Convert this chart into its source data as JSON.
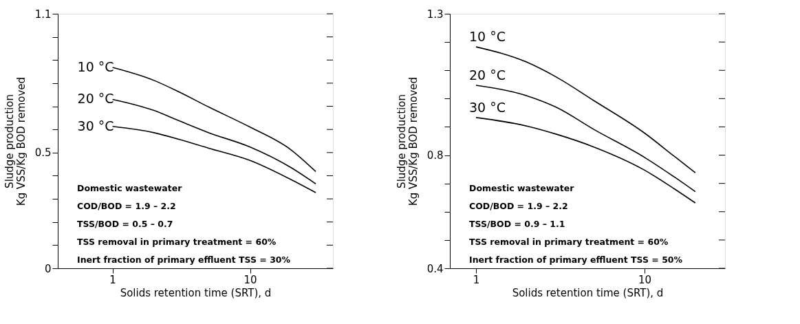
{
  "chart_data": [
    {
      "type": "line",
      "xlabel": "Solids retention time (SRT), d",
      "ylabel": "Sludge production\nKg VSS/Kg BOD removed",
      "log": "x",
      "grid": false,
      "legend": false,
      "marker": "none",
      "line_style": "solid",
      "xlim": [
        0.4,
        40
      ],
      "xticks": [
        1,
        10
      ],
      "ylim": [
        0,
        1.1
      ],
      "yticks": [
        0,
        {
          "value": 0.1,
          "label": null
        },
        {
          "value": 0.2,
          "label": null
        },
        {
          "value": 0.3,
          "label": null
        },
        {
          "value": 0.4,
          "label": null
        },
        0.5,
        {
          "value": 0.6,
          "label": null
        },
        {
          "value": 0.7,
          "label": null
        },
        {
          "value": 0.8,
          "label": null
        },
        {
          "value": 0.9,
          "label": null
        },
        {
          "value": 1.0,
          "label": null
        },
        1.1
      ],
      "x": [
        1,
        2,
        3,
        5,
        10,
        19.6,
        30
      ],
      "series": [
        {
          "name": "10 °C",
          "color": "#000000",
          "values": [
            0.868,
            0.812,
            0.764,
            0.697,
            0.61,
            0.514,
            0.418
          ]
        },
        {
          "name": "20 °C",
          "color": "#000000",
          "values": [
            0.73,
            0.682,
            0.639,
            0.586,
            0.524,
            0.437,
            0.365
          ]
        },
        {
          "name": "30 °C",
          "color": "#000000",
          "values": [
            0.613,
            0.586,
            0.558,
            0.519,
            0.466,
            0.385,
            0.327
          ]
        }
      ],
      "annotations": [
        "Domestic wastewater",
        "COD/BOD = 1.9 – 2.2",
        "TSS/BOD = 0.5 – 0.7",
        "TSS removal in primary treatment = 60%",
        "Inert fraction of primary effluent TSS = 30%"
      ]
    },
    {
      "type": "line",
      "xlabel": "Solids retention time (SRT), d",
      "ylabel": "Sludge production\nKg VSS/Kg BOD removed",
      "log": "x",
      "grid": false,
      "legend": false,
      "marker": "none",
      "line_style": "solid",
      "xlim": [
        0.7,
        30
      ],
      "xticks": [
        1,
        10
      ],
      "ylim": [
        0.4,
        1.3
      ],
      "yticks": [
        0.4,
        {
          "value": 0.5,
          "label": null
        },
        {
          "value": 0.6,
          "label": null
        },
        {
          "value": 0.7,
          "label": null
        },
        0.8,
        {
          "value": 0.9,
          "label": null
        },
        {
          "value": 1.0,
          "label": null
        },
        {
          "value": 1.1,
          "label": null
        },
        {
          "value": 1.2,
          "label": null
        },
        1.3
      ],
      "x": [
        1,
        2,
        3,
        5,
        10,
        15,
        20
      ],
      "series": [
        {
          "name": "10 °C",
          "color": "#000000",
          "values": [
            1.183,
            1.129,
            1.076,
            0.993,
            0.878,
            0.796,
            0.738
          ]
        },
        {
          "name": "20 °C",
          "color": "#000000",
          "values": [
            1.047,
            1.01,
            0.969,
            0.891,
            0.792,
            0.723,
            0.671
          ]
        },
        {
          "name": "30 °C",
          "color": "#000000",
          "values": [
            0.933,
            0.903,
            0.874,
            0.829,
            0.747,
            0.681,
            0.631
          ]
        }
      ],
      "annotations": [
        "Domestic wastewater",
        "COD/BOD = 1.9 – 2.2",
        "TSS/BOD = 0.9 – 1.1",
        "TSS removal in primary treatment = 60%",
        "Inert fraction of primary effluent TSS = 50%"
      ]
    }
  ]
}
